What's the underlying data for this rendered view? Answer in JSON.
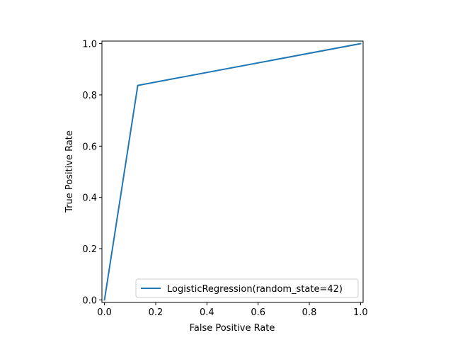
{
  "chart_data": {
    "type": "line",
    "title": "",
    "xlabel": "False Positive Rate",
    "ylabel": "True Positive Rate",
    "xlim": [
      -0.01,
      1.01
    ],
    "ylim": [
      -0.01,
      1.01
    ],
    "x_ticks": [
      0.0,
      0.2,
      0.4,
      0.6,
      0.8,
      1.0
    ],
    "y_ticks": [
      0.0,
      0.2,
      0.4,
      0.6,
      0.8,
      1.0
    ],
    "x_tick_labels": [
      "0.0",
      "0.2",
      "0.4",
      "0.6",
      "0.8",
      "1.0"
    ],
    "y_tick_labels": [
      "0.0",
      "0.2",
      "0.4",
      "0.6",
      "0.8",
      "1.0"
    ],
    "grid": false,
    "legend_position": "lower-right",
    "series": [
      {
        "name": "LogisticRegression(random_state=42)",
        "color": "#1f77b4",
        "x": [
          0.0,
          0.13,
          1.0
        ],
        "y": [
          0.0,
          0.837,
          1.0
        ]
      }
    ]
  }
}
